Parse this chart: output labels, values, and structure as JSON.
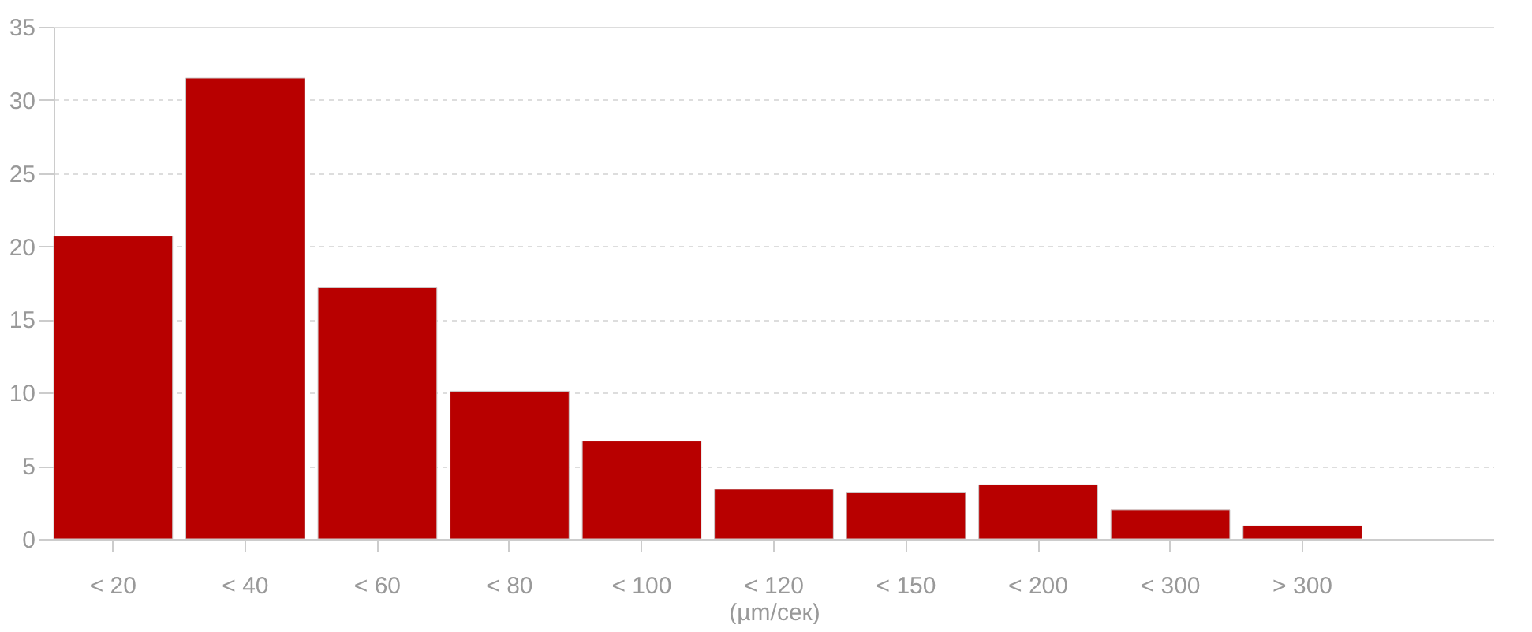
{
  "chart_data": {
    "type": "bar",
    "xlabel": "(µm/сек)",
    "categories": [
      "< 20",
      "< 40",
      "< 60",
      "< 80",
      "< 100",
      "< 120",
      "< 150",
      "< 200",
      "< 300",
      "> 300"
    ],
    "values": [
      20.7,
      31.5,
      17.2,
      10.1,
      6.7,
      3.4,
      3.2,
      3.7,
      2.0,
      0.9
    ],
    "color": "#b80000",
    "ylim": [
      0,
      35
    ],
    "yticks": [
      0,
      5,
      10,
      15,
      20,
      25,
      30,
      35
    ],
    "grid": "y"
  }
}
